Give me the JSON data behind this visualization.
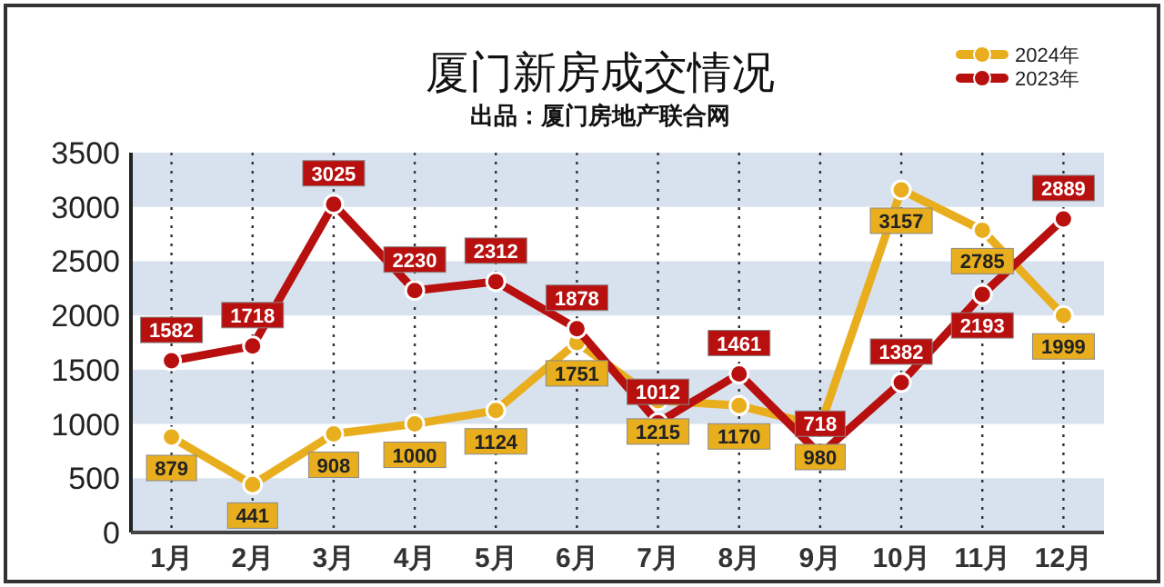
{
  "chart_data": {
    "type": "line",
    "title": "厦门新房成交情况",
    "subtitle": "出品：厦门房地产联合网",
    "categories": [
      "1月",
      "2月",
      "3月",
      "4月",
      "5月",
      "6月",
      "7月",
      "8月",
      "9月",
      "10月",
      "11月",
      "12月"
    ],
    "series": [
      {
        "name": "2024年",
        "color": "#e8ae1e",
        "values": [
          879,
          441,
          908,
          1000,
          1124,
          1751,
          1215,
          1170,
          980,
          3157,
          2785,
          1999
        ]
      },
      {
        "name": "2023年",
        "color": "#b80f0f",
        "values": [
          1582,
          1718,
          3025,
          2230,
          2312,
          1878,
          1012,
          1461,
          718,
          1382,
          2193,
          2889
        ]
      }
    ],
    "ylim": [
      0,
      3500
    ],
    "yticks": [
      0,
      500,
      1000,
      1500,
      2000,
      2500,
      3000,
      3500
    ],
    "grid": true,
    "legend": "top right",
    "marker": "circle",
    "data_labels": true
  }
}
